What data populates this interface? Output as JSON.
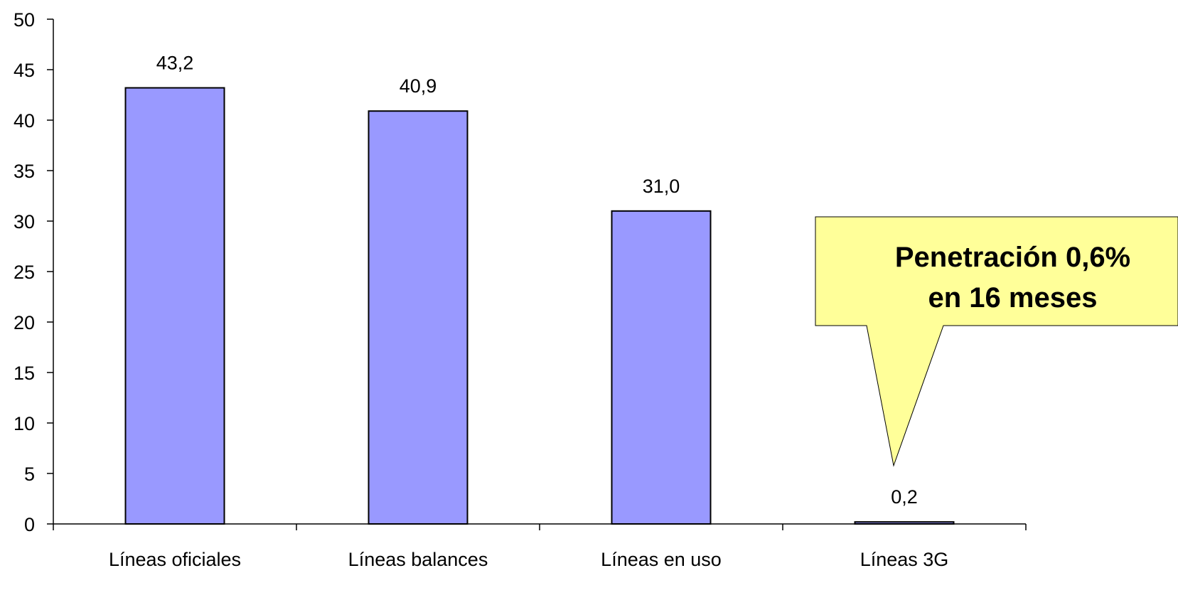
{
  "chart_data": {
    "type": "bar",
    "title": "",
    "xlabel": "",
    "ylabel": "",
    "categories": [
      "Líneas oficiales",
      "Líneas balances",
      "Líneas en uso",
      "Líneas 3G"
    ],
    "values": [
      43.2,
      40.9,
      31.0,
      0.2
    ],
    "data_labels": [
      "43,2",
      "40,9",
      "31,0",
      "0,2"
    ],
    "ylim": [
      0,
      50
    ],
    "yticks": [
      0,
      5,
      10,
      15,
      20,
      25,
      30,
      35,
      40,
      45,
      50
    ],
    "ytick_labels": [
      "0",
      "5",
      "10",
      "15",
      "20",
      "25",
      "30",
      "35",
      "40",
      "45",
      "50"
    ],
    "grid": false,
    "legend": "none",
    "bar_color": "#9999FF",
    "bar_edge_color": "#000000",
    "annotations": [
      {
        "lines": [
          "Penetración 0,6%",
          "en 16 meses"
        ],
        "style": "callout",
        "points_to": "Líneas 3G",
        "fill": "#FFFF99",
        "edge": "#000000"
      }
    ]
  }
}
